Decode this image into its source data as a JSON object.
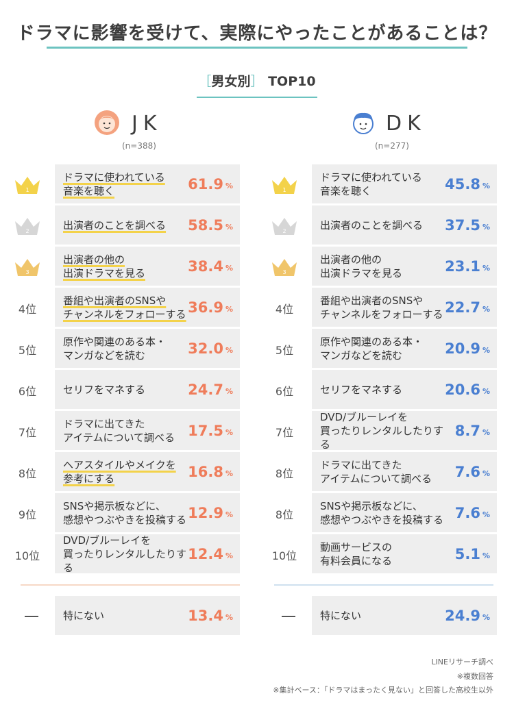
{
  "title": "ドラマに影響を受けて、実際にやったことがあることは？",
  "subtitle": {
    "open": "［",
    "text": "男女別",
    "close": "］",
    "top": "TOP10"
  },
  "colors": {
    "jk": "#ef7c5a",
    "dk": "#4a7fd1",
    "gold": "#f3d24a",
    "teal": "#6cc3c0"
  },
  "groups": [
    {
      "label": "JK",
      "n": "(n=388)",
      "rows": [
        {
          "rank": "1",
          "lines": [
            "ドラマに使われている",
            "音楽を聴く"
          ],
          "value": 61.9
        },
        {
          "rank": "2",
          "lines": [
            "出演者のことを調べる"
          ],
          "value": 58.5
        },
        {
          "rank": "3",
          "lines": [
            "出演者の他の",
            "出演ドラマを見る"
          ],
          "value": 38.4
        },
        {
          "rank": "4位",
          "lines": [
            "番組や出演者のSNSや",
            "チャンネルをフォローする"
          ],
          "value": 36.9
        },
        {
          "rank": "5位",
          "lines": [
            "原作や関連のある本・",
            "マンガなどを読む"
          ],
          "value": 32.0
        },
        {
          "rank": "6位",
          "lines": [
            "セリフをマネする"
          ],
          "value": 24.7
        },
        {
          "rank": "7位",
          "lines": [
            "ドラマに出てきた",
            "アイテムについて調べる"
          ],
          "value": 17.5
        },
        {
          "rank": "8位",
          "lines": [
            "ヘアスタイルやメイクを",
            "参考にする"
          ],
          "value": 16.8
        },
        {
          "rank": "9位",
          "lines": [
            "SNSや掲示板などに、",
            "感想やつぶやきを投稿する"
          ],
          "value": 12.9
        },
        {
          "rank": "10位",
          "lines": [
            "DVD/ブルーレイを",
            "買ったりレンタルしたりする"
          ],
          "value": 12.4
        }
      ],
      "none": {
        "rank": "—",
        "lines": [
          "特にない"
        ],
        "value": 13.4
      }
    },
    {
      "label": "DK",
      "n": "(n=277)",
      "rows": [
        {
          "rank": "1",
          "lines": [
            "ドラマに使われている",
            "音楽を聴く"
          ],
          "value": 45.8
        },
        {
          "rank": "2",
          "lines": [
            "出演者のことを調べる"
          ],
          "value": 37.5
        },
        {
          "rank": "3",
          "lines": [
            "出演者の他の",
            "出演ドラマを見る"
          ],
          "value": 23.1
        },
        {
          "rank": "4位",
          "lines": [
            "番組や出演者のSNSや",
            "チャンネルをフォローする"
          ],
          "value": 22.7
        },
        {
          "rank": "5位",
          "lines": [
            "原作や関連のある本・",
            "マンガなどを読む"
          ],
          "value": 20.9
        },
        {
          "rank": "6位",
          "lines": [
            "セリフをマネする"
          ],
          "value": 20.6
        },
        {
          "rank": "7位",
          "lines": [
            "DVD/ブルーレイを",
            "買ったりレンタルしたりする"
          ],
          "value": 8.7
        },
        {
          "rank": "8位",
          "lines": [
            "ドラマに出てきた",
            "アイテムについて調べる"
          ],
          "value": 7.6
        },
        {
          "rank": "8位",
          "lines": [
            "SNSや掲示板などに、",
            "感想やつぶやきを投稿する"
          ],
          "value": 7.6
        },
        {
          "rank": "10位",
          "lines": [
            "動画サービスの",
            "有料会員になる"
          ],
          "value": 5.1
        }
      ],
      "none": {
        "rank": "—",
        "lines": [
          "特にない"
        ],
        "value": 24.9
      }
    }
  ],
  "chart_data": {
    "type": "table",
    "title": "ドラマに影響を受けて、実際にやったことがあることは？",
    "subtitle": "男女別 TOP10",
    "unit": "%",
    "series": [
      {
        "name": "JK",
        "n": 388,
        "categories": [
          "ドラマに使われている音楽を聴く",
          "出演者のことを調べる",
          "出演者の他の出演ドラマを見る",
          "番組や出演者のSNSやチャンネルをフォローする",
          "原作や関連のある本・マンガなどを読む",
          "セリフをマネする",
          "ドラマに出てきたアイテムについて調べる",
          "ヘアスタイルやメイクを参考にする",
          "SNSや掲示板などに、感想やつぶやきを投稿する",
          "DVD/ブルーレイを買ったりレンタルしたりする",
          "特にない"
        ],
        "values": [
          61.9,
          58.5,
          38.4,
          36.9,
          32.0,
          24.7,
          17.5,
          16.8,
          12.9,
          12.4,
          13.4
        ]
      },
      {
        "name": "DK",
        "n": 277,
        "categories": [
          "ドラマに使われている音楽を聴く",
          "出演者のことを調べる",
          "出演者の他の出演ドラマを見る",
          "番組や出演者のSNSやチャンネルをフォローする",
          "原作や関連のある本・マンガなどを読む",
          "セリフをマネする",
          "DVD/ブルーレイを買ったりレンタルしたりする",
          "ドラマに出てきたアイテムについて調べる",
          "SNSや掲示板などに、感想やつぶやきを投稿する",
          "動画サービスの有料会員になる",
          "特にない"
        ],
        "values": [
          45.8,
          37.5,
          23.1,
          22.7,
          20.9,
          20.6,
          8.7,
          7.6,
          7.6,
          5.1,
          24.9
        ]
      }
    ]
  },
  "footer": {
    "source": "LINEリサーチ調べ",
    "multi": "※複数回答",
    "base": "※集計ベース：「ドラマはまったく見ない」と回答した高校生以外"
  }
}
